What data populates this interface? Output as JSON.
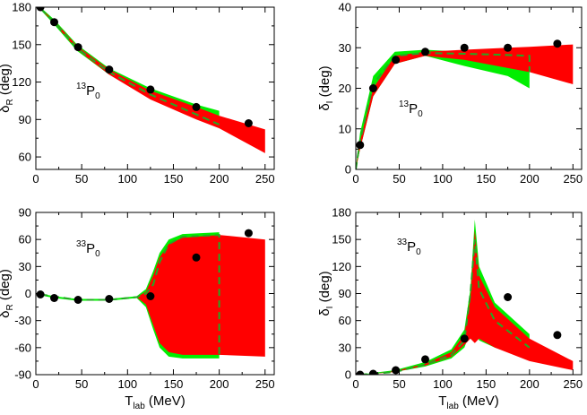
{
  "chart_data": [
    {
      "type": "scatter",
      "title": "",
      "label": {
        "sup": "13",
        "main": "P",
        "sub": "0"
      },
      "ylabel": {
        "main": "δ",
        "sub": "R",
        "unit": " (deg)"
      },
      "xlabel": null,
      "xlim": [
        0,
        260
      ],
      "ylim": [
        50,
        180
      ],
      "xticks": [
        0,
        50,
        100,
        150,
        200,
        250
      ],
      "yticks": [
        60,
        90,
        120,
        150,
        180
      ],
      "colors": {
        "red": "#ff0000",
        "green": "#00ee00",
        "dash": "#22aa22",
        "points": "#000000"
      },
      "red_band": {
        "x": [
          5,
          20,
          45,
          80,
          125,
          175,
          200,
          250
        ],
        "upper": [
          179,
          169,
          149,
          130,
          113,
          100,
          93,
          82
        ],
        "lower": [
          179,
          167,
          146,
          126,
          106,
          90,
          83,
          63
        ]
      },
      "green_band": {
        "x": [
          5,
          20,
          45,
          80,
          125,
          175,
          200
        ],
        "upper": [
          180,
          170,
          150,
          131,
          115,
          102,
          97
        ],
        "lower": [
          178,
          166,
          145,
          126,
          110,
          97,
          91
        ]
      },
      "dashed": {
        "x": [
          5,
          20,
          45,
          80,
          125,
          175,
          200
        ],
        "y": [
          179,
          168,
          147,
          128,
          110,
          94,
          86
        ]
      },
      "points": {
        "x": [
          5,
          20,
          46,
          80,
          125,
          175,
          232
        ],
        "y": [
          180,
          168,
          148,
          130,
          114,
          100,
          87
        ]
      }
    },
    {
      "type": "scatter",
      "title": "",
      "label": {
        "sup": "13",
        "main": "P",
        "sub": "0"
      },
      "ylabel": {
        "main": "δ",
        "sub": "I",
        "unit": " (deg)"
      },
      "xlabel": null,
      "xlim": [
        0,
        260
      ],
      "ylim": [
        0,
        40
      ],
      "xticks": [
        0,
        50,
        100,
        150,
        200,
        250
      ],
      "yticks": [
        0,
        10,
        20,
        30,
        40
      ],
      "colors": {
        "red": "#ff0000",
        "green": "#00ee00",
        "dash": "#22aa22",
        "points": "#000000"
      },
      "red_band": {
        "x": [
          0,
          5,
          20,
          45,
          80,
          125,
          175,
          200,
          250
        ],
        "upper": [
          0,
          7,
          20,
          28,
          29,
          29.5,
          30,
          30.2,
          30.8
        ],
        "lower": [
          0,
          5,
          18,
          26,
          28,
          27,
          25,
          24,
          21
        ]
      },
      "green_band": {
        "x": [
          0,
          5,
          20,
          45,
          80,
          125,
          175,
          200
        ],
        "upper": [
          0.5,
          9,
          23,
          29,
          29.5,
          29,
          28.5,
          28.5
        ],
        "lower": [
          0,
          5,
          18,
          26,
          28,
          25.5,
          23,
          20
        ]
      },
      "dashed": {
        "x": [
          0,
          5,
          20,
          45,
          80,
          125,
          175,
          200,
          200
        ],
        "y": [
          0,
          7,
          21,
          28,
          28.7,
          28.5,
          28.2,
          28,
          24
        ]
      },
      "points": {
        "x": [
          5,
          20,
          46,
          80,
          125,
          175,
          232
        ],
        "y": [
          6,
          20,
          27,
          29,
          30,
          30,
          31
        ]
      }
    },
    {
      "type": "scatter",
      "title": "",
      "label": {
        "sup": "33",
        "main": "P",
        "sub": "0"
      },
      "ylabel": {
        "main": "δ",
        "sub": "R",
        "unit": " (deg)"
      },
      "xlabel": {
        "main": "T",
        "sub": "lab",
        "unit": " (MeV)"
      },
      "xlim": [
        0,
        260
      ],
      "ylim": [
        -90,
        90
      ],
      "xticks": [
        0,
        50,
        100,
        150,
        200,
        250
      ],
      "yticks": [
        -90,
        -60,
        -30,
        0,
        30,
        60,
        90
      ],
      "colors": {
        "red": "#ff0000",
        "green": "#00ee00",
        "dash": "#22aa22",
        "points": "#000000"
      },
      "red_band": {
        "x": [
          5,
          20,
          45,
          80,
          110,
          120,
          128,
          135,
          145,
          160,
          200,
          250
        ],
        "upper": [
          -1,
          -4,
          -7,
          -7,
          -4,
          2,
          20,
          40,
          55,
          62,
          65,
          60
        ],
        "lower": [
          -1,
          -4,
          -7,
          -7,
          -4,
          -12,
          -35,
          -55,
          -65,
          -68,
          -68,
          -70
        ]
      },
      "green_band": {
        "x": [
          5,
          20,
          45,
          80,
          110,
          120,
          128,
          135,
          145,
          160,
          200
        ],
        "upper": [
          0,
          -3,
          -6,
          -6,
          -3,
          5,
          25,
          45,
          60,
          66,
          68
        ],
        "lower": [
          -2,
          -5,
          -8,
          -8,
          -5,
          -15,
          -40,
          -60,
          -70,
          -72,
          -72
        ]
      },
      "dashed": {
        "x": [
          5,
          45,
          80,
          110,
          120,
          128,
          135,
          145,
          160,
          200,
          200
        ],
        "y": [
          -1,
          -7,
          -7,
          -4,
          0,
          10,
          35,
          55,
          63,
          65,
          -70
        ]
      },
      "points": {
        "x": [
          5,
          20,
          46,
          80,
          125,
          175,
          232
        ],
        "y": [
          -1,
          -5,
          -7,
          -6,
          -3,
          40,
          67
        ]
      }
    },
    {
      "type": "scatter",
      "title": "",
      "label": {
        "sup": "33",
        "main": "P",
        "sub": "0"
      },
      "ylabel": {
        "main": "δ",
        "sub": "I",
        "unit": " (deg)"
      },
      "xlabel": {
        "main": "T",
        "sub": "lab",
        "unit": " (MeV)"
      },
      "xlim": [
        0,
        260
      ],
      "ylim": [
        0,
        180
      ],
      "xticks": [
        0,
        50,
        100,
        150,
        200,
        250
      ],
      "yticks": [
        0,
        30,
        60,
        90,
        120,
        150,
        180
      ],
      "colors": {
        "red": "#ff0000",
        "green": "#00ee00",
        "dash": "#22aa22",
        "points": "#000000"
      },
      "red_band": {
        "x": [
          5,
          20,
          45,
          80,
          110,
          125,
          132,
          137,
          142,
          160,
          200,
          250
        ],
        "upper": [
          0,
          1,
          4,
          12,
          25,
          45,
          85,
          160,
          110,
          75,
          40,
          15
        ],
        "lower": [
          0,
          1,
          3,
          10,
          20,
          33,
          40,
          35,
          40,
          30,
          15,
          5
        ]
      },
      "green_band": {
        "x": [
          5,
          20,
          45,
          80,
          110,
          125,
          132,
          137,
          142,
          160,
          200
        ],
        "upper": [
          0,
          2,
          5,
          14,
          28,
          50,
          95,
          172,
          120,
          80,
          45
        ],
        "lower": [
          0,
          1,
          3,
          9,
          18,
          30,
          48,
          52,
          38,
          30,
          17
        ]
      },
      "dashed": {
        "x": [
          5,
          45,
          80,
          110,
          125,
          132,
          137,
          142,
          160,
          200
        ],
        "y": [
          0,
          3,
          11,
          22,
          38,
          90,
          150,
          95,
          60,
          30
        ]
      },
      "points": {
        "x": [
          5,
          20,
          46,
          80,
          125,
          175,
          232
        ],
        "y": [
          0,
          1,
          5,
          17,
          40,
          86,
          44
        ]
      }
    }
  ]
}
